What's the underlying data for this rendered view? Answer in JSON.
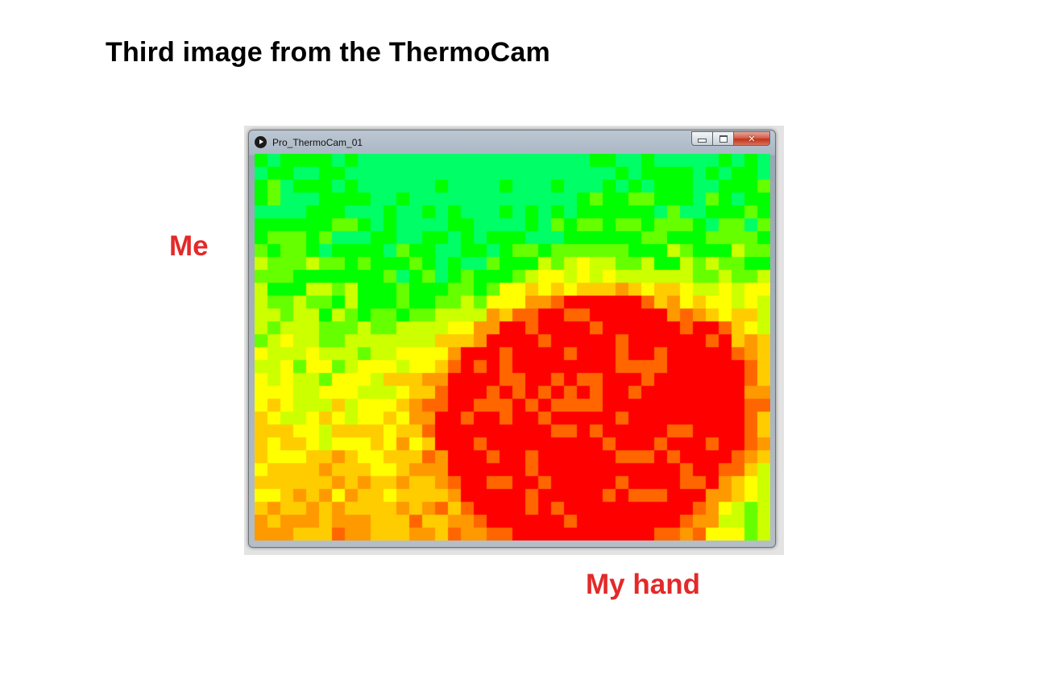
{
  "page": {
    "heading": "Third image from the ThermoCam",
    "annotations": [
      {
        "text": "Me",
        "color": "#e32929"
      },
      {
        "text": "My hand",
        "color": "#e32929"
      }
    ]
  },
  "window": {
    "title": "Pro_ThermoCam_01",
    "app_icon": "play-icon",
    "controls": [
      {
        "icon": "minimize-icon"
      },
      {
        "icon": "maximize-icon"
      },
      {
        "icon": "close-icon"
      }
    ]
  },
  "thermal_image": {
    "grid_columns": 40,
    "grid_rows": 30,
    "color_scale": [
      "#00ff66",
      "#00ff00",
      "#66ff00",
      "#ccff00",
      "#ffff00",
      "#ffcc00",
      "#ff9900",
      "#ff6600",
      "#ff0000"
    ]
  }
}
